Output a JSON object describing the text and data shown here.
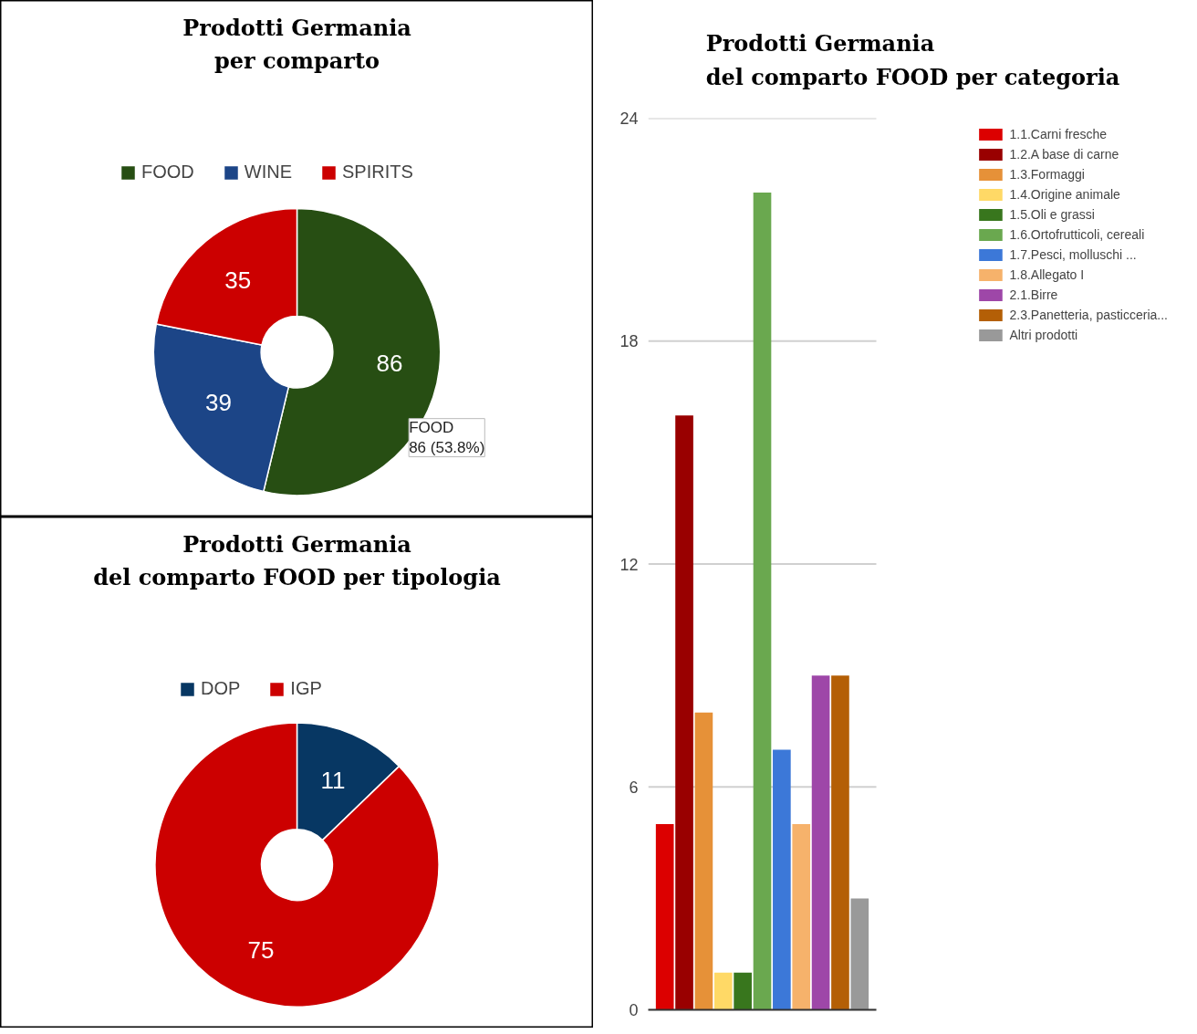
{
  "chart_data": [
    {
      "type": "donut",
      "title": "Prodotti Germania\nper comparto",
      "categories": [
        "FOOD",
        "WINE",
        "SPIRITS"
      ],
      "values": [
        86,
        39,
        35
      ],
      "colors": [
        "#274e13",
        "#1c4587",
        "#cc0000"
      ],
      "data_labels": true,
      "legend": "top",
      "annotations": [
        "FOOD\n86 (53.8%)"
      ]
    },
    {
      "type": "donut",
      "title": "Prodotti Germania\ndel comparto FOOD per tipologia",
      "categories": [
        "DOP",
        "IGP"
      ],
      "values": [
        11,
        75
      ],
      "colors": [
        "#073763",
        "#cc0000"
      ],
      "data_labels": true,
      "legend": "top"
    },
    {
      "type": "bar",
      "title": "Prodotti Germania\ndel comparto FOOD per categoria",
      "categories": [
        null
      ],
      "series": [
        {
          "name": "1.1.Carni fresche",
          "color": "#dc0000",
          "values": [
            5
          ]
        },
        {
          "name": "1.2.A base di carne",
          "color": "#990000",
          "values": [
            16
          ]
        },
        {
          "name": "1.3.Formaggi",
          "color": "#e69138",
          "values": [
            8
          ]
        },
        {
          "name": "1.4.Origine animale",
          "color": "#ffd966",
          "values": [
            1
          ]
        },
        {
          "name": "1.5.Oli e grassi",
          "color": "#38761d",
          "values": [
            1
          ]
        },
        {
          "name": "1.6.Ortofrutticoli, cereali",
          "color": "#6aa84f",
          "values": [
            22
          ]
        },
        {
          "name": "1.7.Pesci, molluschi ...",
          "color": "#3c78d8",
          "values": [
            7
          ]
        },
        {
          "name": "1.8.Allegato I",
          "color": "#f6b26b",
          "values": [
            5
          ]
        },
        {
          "name": "2.1.Birre",
          "color": "#9e47a8",
          "values": [
            9
          ]
        },
        {
          "name": "2.3.Panetteria, pasticceria...",
          "color": "#b45f06",
          "values": [
            9
          ]
        },
        {
          "name": "Altri prodotti",
          "color": "#999999",
          "values": [
            3
          ]
        }
      ],
      "ylim": [
        0,
        24
      ],
      "yticks": [
        0,
        6,
        12,
        18,
        24
      ],
      "grid": "y",
      "tick_labels": "y",
      "legend": "right"
    }
  ]
}
